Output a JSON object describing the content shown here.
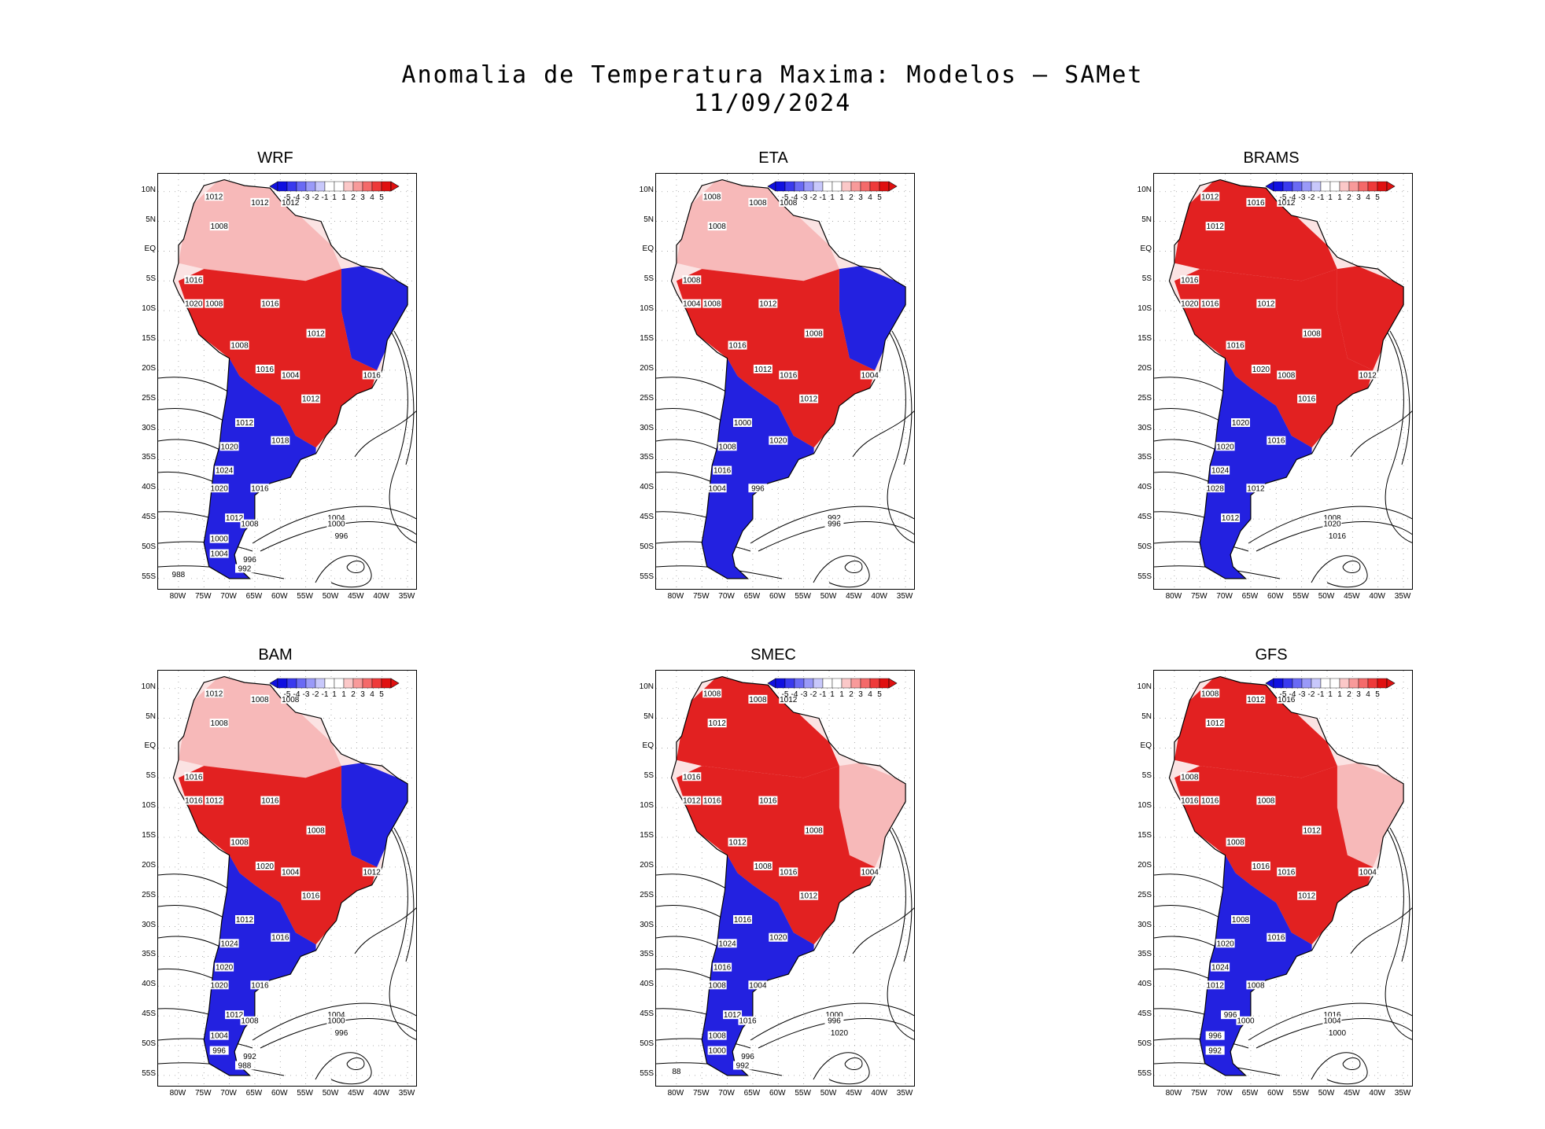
{
  "title": "Anomalia de Temperatura Maxima: Modelos – SAMet",
  "date": "11/09/2024",
  "colorbar": {
    "labels": [
      "-5",
      "-4",
      "-3",
      "-2",
      "-1",
      "1",
      "1",
      "2",
      "3",
      "4",
      "5"
    ],
    "colors": [
      "#1010e0",
      "#3a3aee",
      "#6a6af4",
      "#9a9af8",
      "#c8c8fb",
      "#ffffff",
      "#ffffff",
      "#fbc8c8",
      "#f89a9a",
      "#f46a6a",
      "#ee3a3a",
      "#e01010"
    ]
  },
  "lat_labels": [
    "10N",
    "5N",
    "EQ",
    "5S",
    "10S",
    "15S",
    "20S",
    "25S",
    "30S",
    "35S",
    "40S",
    "45S",
    "50S",
    "55S"
  ],
  "lon_labels": [
    "80W",
    "75W",
    "70W",
    "65W",
    "60W",
    "55W",
    "50W",
    "45W",
    "40W",
    "35W"
  ],
  "colors": {
    "warm": "#e01010",
    "cold": "#1010e0",
    "contour": "#000000"
  },
  "panels": [
    {
      "name": "WRF",
      "isobars": [
        "1012",
        "1008",
        "1012",
        "1012",
        "1016",
        "1020",
        "1008",
        "1016",
        "1012",
        "1008",
        "1016",
        "1004",
        "1012",
        "1016",
        "1012",
        "1018",
        "1020",
        "1024",
        "1020",
        "1016",
        "1004",
        "1000",
        "996",
        "1012",
        "1008",
        "1000",
        "1004",
        "996",
        "992",
        "988"
      ],
      "north": "mixed",
      "northeast": "cold",
      "central": "warm",
      "south": "cold"
    },
    {
      "name": "ETA",
      "isobars": [
        "1008",
        "1008",
        "1008",
        "1008",
        "1008",
        "1004",
        "1008",
        "1012",
        "1008",
        "1016",
        "1012",
        "1016",
        "1012",
        "1004",
        "1000",
        "1020",
        "1008",
        "1016",
        "1004",
        "996",
        "992",
        "996"
      ],
      "north": "mixed",
      "northeast": "cold",
      "central": "warm",
      "south": "cold"
    },
    {
      "name": "BRAMS",
      "isobars": [
        "1012",
        "1012",
        "1016",
        "1012",
        "1016",
        "1020",
        "1016",
        "1012",
        "1008",
        "1016",
        "1020",
        "1008",
        "1016",
        "1012",
        "1020",
        "1016",
        "1020",
        "1024",
        "1028",
        "1012",
        "1008",
        "1020",
        "1016",
        "1012"
      ],
      "north": "warm",
      "northeast": "warm",
      "central": "warm",
      "south": "cold"
    },
    {
      "name": "BAM",
      "isobars": [
        "1012",
        "1008",
        "1008",
        "1008",
        "1016",
        "1016",
        "1012",
        "1016",
        "1008",
        "1008",
        "1020",
        "1004",
        "1016",
        "1012",
        "1012",
        "1016",
        "1024",
        "1020",
        "1020",
        "1016",
        "1004",
        "1000",
        "996",
        "1012",
        "1008",
        "1004",
        "996",
        "992",
        "988"
      ],
      "north": "mixed",
      "northeast": "cold",
      "central": "warm",
      "south": "cold"
    },
    {
      "name": "SMEC",
      "isobars": [
        "1008",
        "1012",
        "1008",
        "1012",
        "1016",
        "1012",
        "1016",
        "1016",
        "1008",
        "1012",
        "1008",
        "1016",
        "1012",
        "1004",
        "1016",
        "1020",
        "1024",
        "1016",
        "1008",
        "1004",
        "1000",
        "996",
        "1020",
        "1012",
        "1016",
        "1008",
        "1000",
        "996",
        "992",
        "88"
      ],
      "north": "warm",
      "northeast": "mixed",
      "central": "warm",
      "south": "cold"
    },
    {
      "name": "GFS",
      "isobars": [
        "1008",
        "1012",
        "1012",
        "1016",
        "1008",
        "1016",
        "1016",
        "1008",
        "1012",
        "1008",
        "1016",
        "1016",
        "1012",
        "1004",
        "1008",
        "1016",
        "1020",
        "1024",
        "1012",
        "1008",
        "1016",
        "1004",
        "1000",
        "996",
        "1000",
        "996",
        "992"
      ],
      "north": "warm",
      "northeast": "mixed",
      "central": "warm",
      "south": "cold"
    }
  ]
}
